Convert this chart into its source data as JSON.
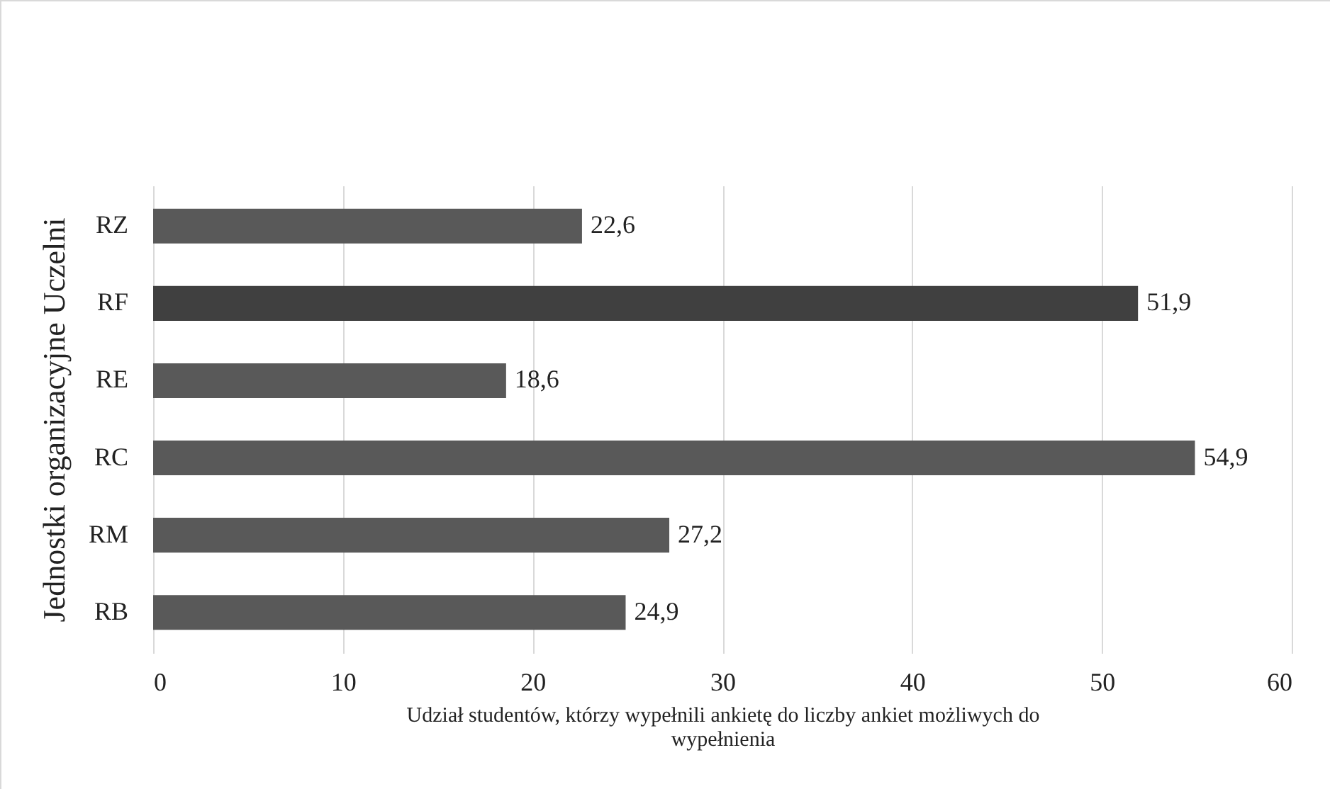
{
  "chart_data": {
    "type": "bar",
    "orientation": "horizontal",
    "xlabel": "Udział studentów, którzy wypełnili ankietę do liczby ankiet możliwych do wypełnienia",
    "ylabel": "Jednostki organizacyjne Uczelni",
    "categories": [
      "RZ",
      "RF",
      "RE",
      "RC",
      "RM",
      "RB"
    ],
    "values": [
      22.6,
      51.9,
      18.6,
      54.9,
      27.2,
      24.9
    ],
    "colors": [
      "#595959",
      "#404040",
      "#595959",
      "#595959",
      "#595959",
      "#595959"
    ],
    "value_labels": [
      "22,6",
      "51,9",
      "18,6",
      "54,9",
      "27,2",
      "24,9"
    ],
    "xlim": [
      0,
      60
    ],
    "xticks": [
      0,
      10,
      20,
      30,
      40,
      50,
      60
    ],
    "grid": "x"
  }
}
